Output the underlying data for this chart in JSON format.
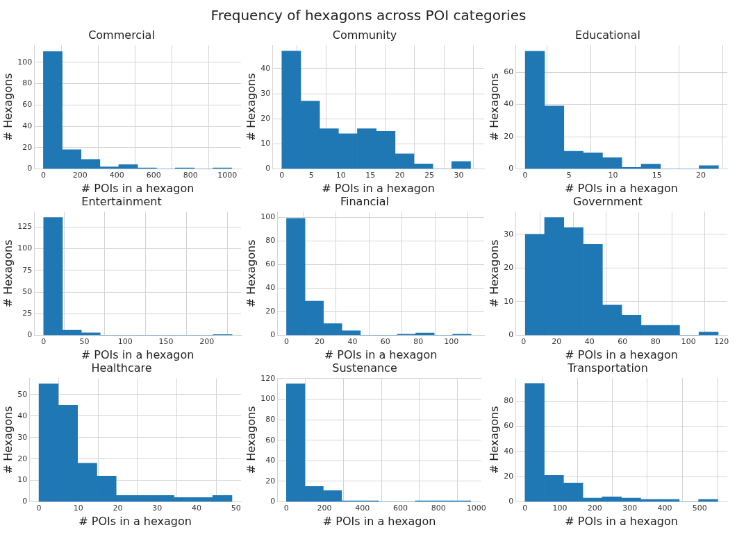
{
  "chart_data": [
    {
      "type": "other",
      "title": "Frequency of hexagons across POI categories"
    },
    {
      "type": "histogram",
      "title": "Commercial",
      "xlabel": "# POIs in a hexagon",
      "ylabel": "# Hexagons",
      "color": "#1f77b4",
      "grid": true,
      "bins": [
        0,
        102.5,
        205,
        307.5,
        410,
        512.5,
        615,
        717.5,
        820,
        922.5,
        1025
      ],
      "values": [
        110,
        18,
        9,
        2,
        4,
        1,
        0,
        1,
        0,
        1
      ],
      "xlim": [
        -50,
        1075
      ],
      "xticks": [
        0,
        200,
        400,
        600,
        800,
        1000
      ],
      "ylim": [
        0,
        116
      ],
      "yticks": [
        0,
        20,
        40,
        60,
        80,
        100
      ]
    },
    {
      "type": "histogram",
      "title": "Community",
      "xlabel": "# POIs in a hexagon",
      "ylabel": "# Hexagons",
      "color": "#1f77b4",
      "grid": true,
      "bins": [
        0,
        3.2,
        6.4,
        9.6,
        12.8,
        16,
        19.2,
        22.4,
        25.6,
        28.8,
        32
      ],
      "values": [
        47,
        27,
        16,
        14,
        16,
        15,
        6,
        2,
        0,
        3
      ],
      "xlim": [
        -1.6,
        34.3
      ],
      "xticks": [
        0,
        5,
        10,
        15,
        20,
        25,
        30
      ],
      "ylim": [
        0,
        49.3
      ],
      "yticks": [
        0,
        10,
        20,
        30,
        40
      ]
    },
    {
      "type": "histogram",
      "title": "Educational",
      "xlabel": "# POIs in a hexagon",
      "ylabel": "# Hexagons",
      "color": "#1f77b4",
      "grid": true,
      "bins": [
        0,
        2.2,
        4.4,
        6.6,
        8.8,
        11,
        13.2,
        15.4,
        17.6,
        19.8,
        22
      ],
      "values": [
        73,
        39,
        11,
        10,
        7,
        1,
        3,
        0,
        0,
        2
      ],
      "xlim": [
        -1.1,
        23
      ],
      "xticks": [
        0,
        5,
        10,
        15,
        20
      ],
      "ylim": [
        0,
        76.7
      ],
      "yticks": [
        0,
        20,
        40,
        60
      ]
    },
    {
      "type": "histogram",
      "title": "Entertainment",
      "xlabel": "# POIs in a hexagon",
      "ylabel": "# Hexagons",
      "color": "#1f77b4",
      "grid": true,
      "bins": [
        0,
        23.1,
        46.2,
        69.3,
        92.4,
        115.5,
        138.6,
        161.7,
        184.8,
        207.9,
        231
      ],
      "values": [
        136,
        6,
        3,
        0,
        0,
        0,
        0,
        0,
        0,
        1
      ],
      "xlim": [
        -11.6,
        242
      ],
      "xticks": [
        0,
        50,
        100,
        150,
        200
      ],
      "ylim": [
        0,
        142.6
      ],
      "yticks": [
        0,
        25,
        50,
        75,
        100,
        125
      ]
    },
    {
      "type": "histogram",
      "title": "Financial",
      "xlabel": "# POIs in a hexagon",
      "ylabel": "# Hexagons",
      "color": "#1f77b4",
      "grid": true,
      "bins": [
        0,
        11.2,
        22.4,
        33.6,
        44.8,
        56,
        67.2,
        78.4,
        89.6,
        100.8,
        112
      ],
      "values": [
        99,
        29,
        10,
        4,
        0,
        0,
        1,
        2,
        0,
        1
      ],
      "xlim": [
        -5.6,
        119.9
      ],
      "xticks": [
        0,
        20,
        40,
        60,
        80,
        100
      ],
      "ylim": [
        0,
        104.7
      ],
      "yticks": [
        0,
        20,
        40,
        60,
        80,
        100
      ]
    },
    {
      "type": "histogram",
      "title": "Government",
      "xlabel": "# POIs in a hexagon",
      "ylabel": "# Hexagons",
      "color": "#1f77b4",
      "grid": true,
      "bins": [
        1,
        12.7,
        24.4,
        36.1,
        47.8,
        59.5,
        71.2,
        82.9,
        94.6,
        106.3,
        118
      ],
      "values": [
        30,
        35,
        32,
        27,
        9,
        6,
        3,
        3,
        0,
        1
      ],
      "xlim": [
        -4.9,
        123.5
      ],
      "xticks": [
        0,
        20,
        40,
        60,
        80,
        100,
        120
      ],
      "ylim": [
        0,
        36.7
      ],
      "yticks": [
        0,
        10,
        20,
        30
      ]
    },
    {
      "type": "histogram",
      "title": "Healthcare",
      "xlabel": "# POIs in a hexagon",
      "ylabel": "# Hexagons",
      "color": "#1f77b4",
      "grid": true,
      "bins": [
        0,
        4.9,
        9.8,
        14.7,
        19.6,
        24.5,
        29.4,
        34.3,
        39.2,
        44.1,
        49
      ],
      "values": [
        55,
        45,
        18,
        12,
        3,
        3,
        3,
        2,
        2,
        3
      ],
      "xlim": [
        -2.45,
        51.3
      ],
      "xticks": [
        0,
        10,
        20,
        30,
        40,
        50
      ],
      "ylim": [
        0,
        57.6
      ],
      "yticks": [
        0,
        10,
        20,
        30,
        40,
        50
      ]
    },
    {
      "type": "histogram",
      "title": "Sustenance",
      "xlabel": "# POIs in a hexagon",
      "ylabel": "# Hexagons",
      "color": "#1f77b4",
      "grid": true,
      "bins": [
        0,
        97,
        194,
        291,
        388,
        485,
        582,
        679,
        776,
        873,
        970
      ],
      "values": [
        115,
        15,
        11,
        1,
        1,
        0,
        0,
        1,
        1,
        1
      ],
      "xlim": [
        -48,
        1026
      ],
      "xticks": [
        0,
        200,
        400,
        600,
        800,
        1000
      ],
      "ylim": [
        0,
        120.5
      ],
      "yticks": [
        0,
        20,
        40,
        60,
        80,
        100,
        120
      ]
    },
    {
      "type": "histogram",
      "title": "Transportation",
      "xlabel": "# POIs in a hexagon",
      "ylabel": "# Hexagons",
      "color": "#1f77b4",
      "grid": true,
      "bins": [
        0,
        55.2,
        110.4,
        165.6,
        220.8,
        276,
        331.2,
        386.4,
        441.6,
        496.8,
        552
      ],
      "values": [
        94,
        21,
        15,
        3,
        4,
        3,
        2,
        2,
        0,
        2
      ],
      "xlim": [
        -27,
        579
      ],
      "xticks": [
        0,
        100,
        200,
        300,
        400,
        500
      ],
      "ylim": [
        0,
        98.2
      ],
      "yticks": [
        0,
        20,
        40,
        60,
        80
      ]
    }
  ]
}
